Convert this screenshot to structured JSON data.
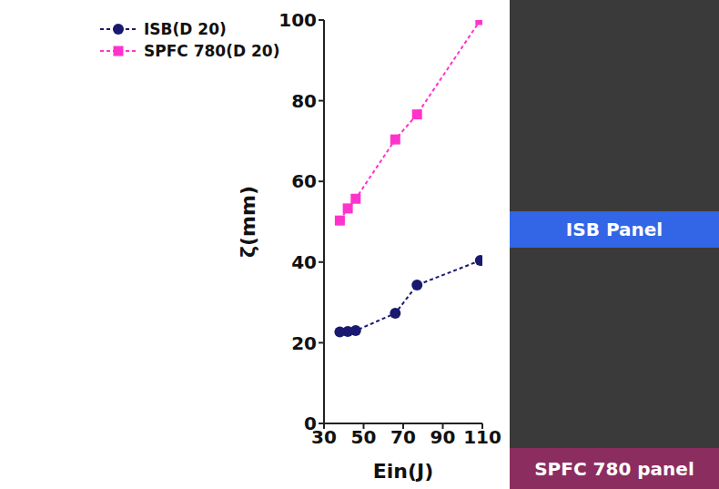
{
  "chart_data": {
    "type": "line",
    "x_label": "Ein(J)",
    "y_label": "ζ(mm)",
    "x": [
      38,
      42,
      46,
      66,
      77,
      109
    ],
    "series": [
      {
        "name": "ISB(D 20)",
        "color": "#191970",
        "marker": "circle",
        "line_style": "dashed",
        "values": [
          22.7,
          22.8,
          23,
          27.3,
          34.3,
          40.4
        ]
      },
      {
        "name": "SPFC 780(D 20)",
        "color": "#ff33cc",
        "marker": "square",
        "line_style": "dashed",
        "values": [
          50.3,
          53.3,
          55.7,
          70.4,
          76.6,
          100
        ]
      }
    ],
    "xlim": [
      30,
      110
    ],
    "xticks": [
      30,
      50,
      70,
      90,
      110
    ],
    "ylim": [
      0,
      100
    ],
    "yticks": [
      0,
      20,
      40,
      60,
      80,
      100
    ],
    "grid": false,
    "legend": "upper left"
  },
  "images": [
    {
      "label": "ISB Panel",
      "color": "#3366e6"
    },
    {
      "label": "SPFC 780 panel",
      "color": "#8c2d5f"
    }
  ]
}
